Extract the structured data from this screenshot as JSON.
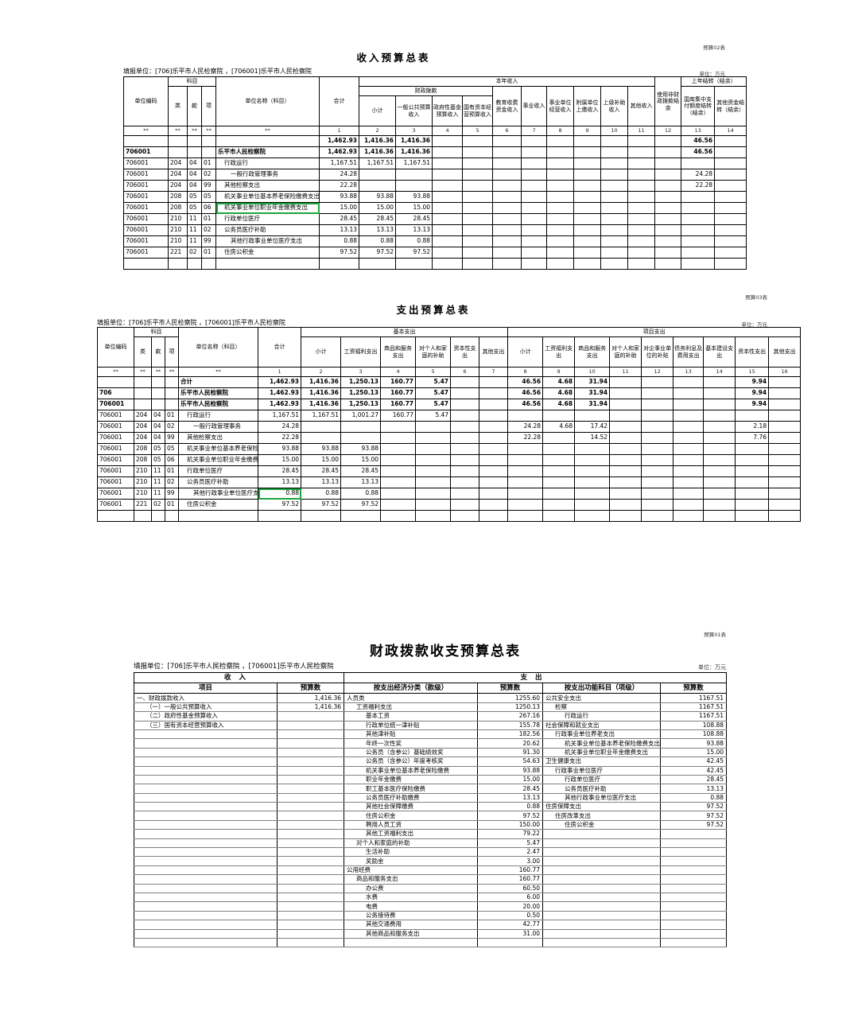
{
  "t1": {
    "corner": "预算02表",
    "title": "收入预算总表",
    "filer": "填报单位：[706]乐平市人民检察院 ，[706001]乐平市人民检察院",
    "unit": "单位：万元",
    "h": {
      "code": "单位编码",
      "subject": "科目",
      "cls": "类",
      "sec": "款",
      "itm": "项",
      "name": "单位名称（科目）",
      "total": "合计",
      "year": "本年收入",
      "fiscal": "财政拨款",
      "sub": "小计",
      "gpb": "一般公共预算收入",
      "gfund": "政府性基金预算收入",
      "soe": "国有资本经营预算收入",
      "edu": "教育收费资金收入",
      "inst": "事业收入",
      "instop": "事业单位经营收入",
      "affil": "附属单位上缴收入",
      "upper": "上级补助收入",
      "other": "其他收入",
      "nonfis": "使用非财政拨款结余",
      "carry": "上年结转（结余）",
      "treasury": "国库集中支付额度结转（结余）",
      "othcarry": "其他资金结转（结余）"
    },
    "stars": [
      "**",
      "**",
      "**",
      "**",
      "**"
    ],
    "nums": [
      "1",
      "2",
      "3",
      "4",
      "5",
      "6",
      "7",
      "8",
      "9",
      "10",
      "11",
      "12",
      "13",
      "14"
    ],
    "rows": [
      [
        "",
        "",
        "",
        "",
        "",
        "1,462.93",
        "1,416.36",
        "1,416.36",
        "",
        "",
        "",
        "",
        "",
        "",
        "",
        "",
        "",
        "46.56",
        ""
      ],
      [
        "706001",
        "",
        "",
        "",
        "乐平市人民检察院",
        "1,462.93",
        "1,416.36",
        "1,416.36",
        "",
        "",
        "",
        "",
        "",
        "",
        "",
        "",
        "",
        "46.56",
        ""
      ],
      [
        "706001",
        "204",
        "04",
        "01",
        "行政运行",
        "1,167.51",
        "1,167.51",
        "1,167.51",
        "",
        "",
        "",
        "",
        "",
        "",
        "",
        "",
        "",
        "",
        ""
      ],
      [
        "706001",
        "204",
        "04",
        "02",
        "一般行政管理事务",
        "24.28",
        "",
        "",
        "",
        "",
        "",
        "",
        "",
        "",
        "",
        "",
        "",
        "24.28",
        ""
      ],
      [
        "706001",
        "204",
        "04",
        "99",
        "其他检察支出",
        "22.28",
        "",
        "",
        "",
        "",
        "",
        "",
        "",
        "",
        "",
        "",
        "",
        "22.28",
        ""
      ],
      [
        "706001",
        "208",
        "05",
        "05",
        "机关事业单位基本养老保险缴费支出",
        "93.88",
        "93.88",
        "93.88",
        "",
        "",
        "",
        "",
        "",
        "",
        "",
        "",
        "",
        "",
        ""
      ],
      [
        "706001",
        "208",
        "05",
        "06",
        "机关事业单位职业年金缴费支出",
        "15.00",
        "15.00",
        "15.00",
        "",
        "",
        "",
        "",
        "",
        "",
        "",
        "",
        "",
        "",
        ""
      ],
      [
        "706001",
        "210",
        "11",
        "01",
        "行政单位医疗",
        "28.45",
        "28.45",
        "28.45",
        "",
        "",
        "",
        "",
        "",
        "",
        "",
        "",
        "",
        "",
        ""
      ],
      [
        "706001",
        "210",
        "11",
        "02",
        "公务员医疗补助",
        "13.13",
        "13.13",
        "13.13",
        "",
        "",
        "",
        "",
        "",
        "",
        "",
        "",
        "",
        "",
        ""
      ],
      [
        "706001",
        "210",
        "11",
        "99",
        "其他行政事业单位医疗支出",
        "0.88",
        "0.88",
        "0.88",
        "",
        "",
        "",
        "",
        "",
        "",
        "",
        "",
        "",
        "",
        ""
      ],
      [
        "706001",
        "221",
        "02",
        "01",
        "住房公积金",
        "97.52",
        "97.52",
        "97.52",
        "",
        "",
        "",
        "",
        "",
        "",
        "",
        "",
        "",
        "",
        ""
      ],
      [
        "",
        "",
        "",
        "",
        "",
        "",
        "",
        "",
        "",
        "",
        "",
        "",
        "",
        "",
        "",
        "",
        "",
        "",
        ""
      ]
    ],
    "indents": [
      0,
      0,
      1,
      2,
      1,
      1,
      1,
      1,
      1,
      2,
      1,
      0
    ],
    "bold": [
      0,
      1
    ],
    "sep": [
      2,
      5,
      7,
      10,
      11
    ],
    "green": {
      "row": 6,
      "col": 4
    }
  },
  "t2": {
    "corner": "预算03表",
    "title": "支出预算总表",
    "filer": "填报单位：[706]乐平市人民检察院 ，[706001]乐平市人民检察院",
    "unit": "单位：万元",
    "h": {
      "code": "单位编码",
      "subject": "科目",
      "cls": "类",
      "sec": "款",
      "itm": "项",
      "name": "单位名称（科目）",
      "total": "合计",
      "basic": "基本支出",
      "proj": "项目支出",
      "sub": "小计",
      "wage": "工资福利支出",
      "goods": "商品和服务支出",
      "family": "对个人和家庭的补助",
      "capital": "资本性支出",
      "othexp": "其他支出",
      "entsub": "对企事业单位的补贴",
      "debt": "债务利息及费用支出",
      "infra": "基本建设支出"
    },
    "stars": [
      "**",
      "**",
      "**",
      "**",
      "**"
    ],
    "nums": [
      "1",
      "2",
      "3",
      "4",
      "5",
      "6",
      "7",
      "8",
      "9",
      "10",
      "11",
      "12",
      "13",
      "14",
      "15",
      "16"
    ],
    "rows": [
      [
        "",
        "",
        "",
        "",
        "合计",
        "1,462.93",
        "1,416.36",
        "1,250.13",
        "160.77",
        "5.47",
        "",
        "",
        "46.56",
        "4.68",
        "31.94",
        "",
        "",
        "",
        "",
        "9.94",
        ""
      ],
      [
        "706",
        "",
        "",
        "",
        "乐平市人民检察院",
        "1,462.93",
        "1,416.36",
        "1,250.13",
        "160.77",
        "5.47",
        "",
        "",
        "46.56",
        "4.68",
        "31.94",
        "",
        "",
        "",
        "",
        "9.94",
        ""
      ],
      [
        "706001",
        "",
        "",
        "",
        "乐平市人民检察院",
        "1,462.93",
        "1,416.36",
        "1,250.13",
        "160.77",
        "5.47",
        "",
        "",
        "46.56",
        "4.68",
        "31.94",
        "",
        "",
        "",
        "",
        "9.94",
        ""
      ],
      [
        "706001",
        "204",
        "04",
        "01",
        "行政运行",
        "1,167.51",
        "1,167.51",
        "1,001.27",
        "160.77",
        "5.47",
        "",
        "",
        "",
        "",
        "",
        "",
        "",
        "",
        "",
        "",
        ""
      ],
      [
        "706001",
        "204",
        "04",
        "02",
        "一般行政管理事务",
        "24.28",
        "",
        "",
        "",
        "",
        "",
        "",
        "24.28",
        "4.68",
        "17.42",
        "",
        "",
        "",
        "",
        "2.18",
        ""
      ],
      [
        "706001",
        "204",
        "04",
        "99",
        "其他检察支出",
        "22.28",
        "",
        "",
        "",
        "",
        "",
        "",
        "22.28",
        "",
        "14.52",
        "",
        "",
        "",
        "",
        "7.76",
        ""
      ],
      [
        "706001",
        "208",
        "05",
        "05",
        "机关事业单位基本养老保险缴费支出",
        "93.88",
        "93.88",
        "93.88",
        "",
        "",
        "",
        "",
        "",
        "",
        "",
        "",
        "",
        "",
        "",
        "",
        ""
      ],
      [
        "706001",
        "208",
        "05",
        "06",
        "机关事业单位职业年金缴费支出",
        "15.00",
        "15.00",
        "15.00",
        "",
        "",
        "",
        "",
        "",
        "",
        "",
        "",
        "",
        "",
        "",
        "",
        ""
      ],
      [
        "706001",
        "210",
        "11",
        "01",
        "行政单位医疗",
        "28.45",
        "28.45",
        "28.45",
        "",
        "",
        "",
        "",
        "",
        "",
        "",
        "",
        "",
        "",
        "",
        "",
        ""
      ],
      [
        "706001",
        "210",
        "11",
        "02",
        "公务员医疗补助",
        "13.13",
        "13.13",
        "13.13",
        "",
        "",
        "",
        "",
        "",
        "",
        "",
        "",
        "",
        "",
        "",
        "",
        ""
      ],
      [
        "706001",
        "210",
        "11",
        "99",
        "其他行政事业单位医疗支出",
        "0.88",
        "0.88",
        "0.88",
        "",
        "",
        "",
        "",
        "",
        "",
        "",
        "",
        "",
        "",
        "",
        "",
        ""
      ],
      [
        "706001",
        "221",
        "02",
        "01",
        "住房公积金",
        "97.52",
        "97.52",
        "97.52",
        "",
        "",
        "",
        "",
        "",
        "",
        "",
        "",
        "",
        "",
        "",
        "",
        ""
      ],
      [
        "",
        "",
        "",
        "",
        "",
        "",
        "",
        "",
        "",
        "",
        "",
        "",
        "",
        "",
        "",
        "",
        "",
        "",
        "",
        "",
        ""
      ]
    ],
    "indents": [
      0,
      0,
      0,
      1,
      2,
      1,
      1,
      1,
      1,
      1,
      2,
      1,
      0
    ],
    "bold": [
      0,
      1,
      2
    ],
    "sep": [
      3,
      6,
      8,
      10,
      12
    ],
    "green": {
      "row": 10,
      "col": 5
    }
  },
  "t3": {
    "corner": "预算01表",
    "title": "财政拨款收支预算总表",
    "filer": "填报单位：[706]乐平市人民检察院 ，[706001]乐平市人民检察院",
    "unit": "单位：万元",
    "h": {
      "income": "收入",
      "expense": "支出",
      "item": "项目",
      "budget": "预算数",
      "econ": "按支出经济分类（款级）",
      "func": "按支出功能科目（项级）"
    },
    "rows": [
      [
        "一、财政拨款收入",
        "1,416.36",
        "人员类",
        "1255.60",
        "公共安全支出",
        "1167.51"
      ],
      [
        "（一）一般公共预算收入",
        "1,416.36",
        "工资福利支出",
        "1250.13",
        "检察",
        "1167.51"
      ],
      [
        "（二）政府性基金预算收入",
        "",
        "基本工资",
        "267.16",
        "行政运行",
        "1167.51"
      ],
      [
        "（三）国有资本经营预算收入",
        "",
        "行政单位统一津补贴",
        "155.78",
        "社会保障和就业支出",
        "108.88"
      ],
      [
        "",
        "",
        "其他津补贴",
        "182.56",
        "行政事业单位养老支出",
        "108.88"
      ],
      [
        "",
        "",
        "年终一次性奖",
        "20.62",
        "机关事业单位基本养老保险缴费支出",
        "93.88"
      ],
      [
        "",
        "",
        "公务员（含参公）基础绩效奖",
        "91.30",
        "机关事业单位职业年金缴费支出",
        "15.00"
      ],
      [
        "",
        "",
        "公务员（含参公）年度考核奖",
        "54.63",
        "卫生健康支出",
        "42.45"
      ],
      [
        "",
        "",
        "机关事业单位基本养老保险缴费",
        "93.88",
        "行政事业单位医疗",
        "42.45"
      ],
      [
        "",
        "",
        "职业年金缴费",
        "15.00",
        "行政单位医疗",
        "28.45"
      ],
      [
        "",
        "",
        "职工基本医疗保险缴费",
        "28.45",
        "公务员医疗补助",
        "13.13"
      ],
      [
        "",
        "",
        "公务员医疗补助缴费",
        "13.13",
        "其他行政事业单位医疗支出",
        "0.88"
      ],
      [
        "",
        "",
        "其他社会保障缴费",
        "0.88",
        "住房保障支出",
        "97.52"
      ],
      [
        "",
        "",
        "住房公积金",
        "97.52",
        "住房改革支出",
        "97.52"
      ],
      [
        "",
        "",
        "聘用人员工资",
        "150.00",
        "住房公积金",
        "97.52"
      ],
      [
        "",
        "",
        "其他工资福利支出",
        "79.22",
        "",
        ""
      ],
      [
        "",
        "",
        "对个人和家庭的补助",
        "5.47",
        "",
        ""
      ],
      [
        "",
        "",
        "生活补助",
        "2.47",
        "",
        ""
      ],
      [
        "",
        "",
        "奖励金",
        "3.00",
        "",
        ""
      ],
      [
        "",
        "",
        "公用经费",
        "160.77",
        "",
        ""
      ],
      [
        "",
        "",
        "商品和服务支出",
        "160.77",
        "",
        ""
      ],
      [
        "",
        "",
        "办公费",
        "60.50",
        "",
        ""
      ],
      [
        "",
        "",
        "水费",
        "6.00",
        "",
        ""
      ],
      [
        "",
        "",
        "电费",
        "20.00",
        "",
        ""
      ],
      [
        "",
        "",
        "公务接待费",
        "0.50",
        "",
        ""
      ],
      [
        "",
        "",
        "其他交通费用",
        "42.77",
        "",
        ""
      ],
      [
        "",
        "",
        "其他商品和服务支出",
        "31.00",
        "",
        ""
      ],
      [
        "",
        "",
        "",
        "",
        "",
        ""
      ]
    ],
    "indents": [
      [
        0,
        0,
        0
      ],
      [
        1,
        1,
        1
      ],
      [
        1,
        2,
        2
      ],
      [
        1,
        2,
        0
      ],
      [
        0,
        2,
        1
      ],
      [
        0,
        2,
        2
      ],
      [
        0,
        2,
        2
      ],
      [
        0,
        2,
        0
      ],
      [
        0,
        2,
        1
      ],
      [
        0,
        2,
        2
      ],
      [
        0,
        2,
        2
      ],
      [
        0,
        2,
        2
      ],
      [
        0,
        2,
        0
      ],
      [
        0,
        2,
        1
      ],
      [
        0,
        2,
        2
      ],
      [
        0,
        2,
        0
      ],
      [
        0,
        1,
        0
      ],
      [
        0,
        2,
        0
      ],
      [
        0,
        2,
        0
      ],
      [
        0,
        0,
        0
      ],
      [
        0,
        1,
        0
      ],
      [
        0,
        2,
        0
      ],
      [
        0,
        2,
        0
      ],
      [
        0,
        2,
        0
      ],
      [
        0,
        2,
        0
      ],
      [
        0,
        2,
        0
      ],
      [
        0,
        2,
        0
      ],
      [
        0,
        0,
        0
      ]
    ]
  }
}
